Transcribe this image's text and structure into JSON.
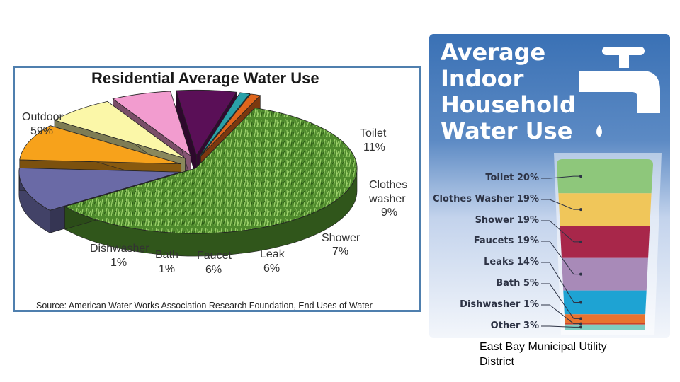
{
  "chart_data": [
    {
      "type": "pie",
      "title": "Residential Average Water Use",
      "source": "Source: American Water Works Association Research Foundation, End Uses of Water",
      "slices": [
        {
          "name": "Outdoor",
          "value": 59,
          "label": "59%",
          "color": "#4e8a2c"
        },
        {
          "name": "Toilet",
          "value": 11,
          "label": "11%",
          "color": "#6a6aa6"
        },
        {
          "name": "Clothes washer",
          "value": 9,
          "label": "9%",
          "color": "#f7a21b"
        },
        {
          "name": "Shower",
          "value": 7,
          "label": "7%",
          "color": "#fbf7a8"
        },
        {
          "name": "Leak",
          "value": 6,
          "label": "6%",
          "color": "#f29ccf"
        },
        {
          "name": "Faucet",
          "value": 6,
          "label": "6%",
          "color": "#5a0f57"
        },
        {
          "name": "Bath",
          "value": 1,
          "label": "1%",
          "color": "#2aa0a8"
        },
        {
          "name": "Dishwasher",
          "value": 1,
          "label": "1%",
          "color": "#e0661c"
        }
      ]
    },
    {
      "type": "bar",
      "title_lines": [
        "Average",
        "Indoor",
        "Household",
        "Water Use"
      ],
      "categories": [
        "Toilet",
        "Clothes Washer",
        "Shower",
        "Faucets",
        "Leaks",
        "Bath",
        "Dishwasher",
        "Other"
      ],
      "values": [
        20,
        19,
        19,
        19,
        14,
        5,
        1,
        3
      ],
      "labels": [
        "Toilet 20%",
        "Clothes Washer 19%",
        "Shower 19%",
        "Faucets 19%",
        "Leaks 14%",
        "Bath 5%",
        "Dishwasher 1%",
        "Other 3%"
      ],
      "colors": [
        "#8ec77b",
        "#f0c65a",
        "#a8274a",
        "#a88ab8",
        "#1ea3d3",
        "#e8732f",
        "#c9432e",
        "#7ecdc2"
      ]
    }
  ],
  "labels": {
    "outdoor": "Outdoor",
    "outdoor_pct": "59%",
    "toilet": "Toilet",
    "toilet_pct": "11%",
    "clothes1": "Clothes",
    "clothes2": "washer",
    "clothes_pct": "9%",
    "shower": "Shower",
    "shower_pct": "7%",
    "leak": "Leak",
    "leak_pct": "6%",
    "faucet": "Faucet",
    "faucet_pct": "6%",
    "bath": "Bath",
    "bath_pct": "1%",
    "dish": "Dishwasher",
    "dish_pct": "1%"
  },
  "caption": "East Bay Municipal Utility District"
}
